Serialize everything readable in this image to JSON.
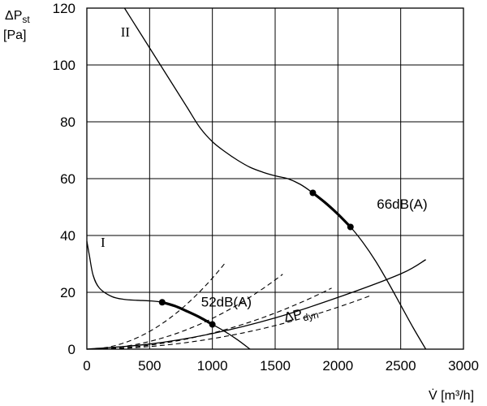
{
  "chart_data": {
    "type": "line",
    "title": "",
    "ylabel_symbol": "ΔP",
    "ylabel_subscript": "st",
    "ylabel_unit": "[Pa]",
    "xlabel": "V̇ [m³/h]",
    "xlim": [
      0,
      3000
    ],
    "ylim": [
      0,
      120
    ],
    "x_ticks": [
      0,
      500,
      1000,
      1500,
      2000,
      2500,
      3000
    ],
    "y_ticks": [
      0,
      20,
      40,
      60,
      80,
      100,
      120
    ],
    "grid": true,
    "curves": [
      {
        "name": "I",
        "style": "solid",
        "points": [
          [
            0,
            38
          ],
          [
            20,
            33
          ],
          [
            50,
            26
          ],
          [
            100,
            21.5
          ],
          [
            200,
            18.5
          ],
          [
            300,
            17.5
          ],
          [
            400,
            17.2
          ],
          [
            500,
            17
          ],
          [
            600,
            16.5
          ],
          [
            700,
            15.2
          ],
          [
            800,
            13.3
          ],
          [
            900,
            11.2
          ],
          [
            1000,
            8.7
          ],
          [
            1100,
            6.2
          ],
          [
            1200,
            3.3
          ],
          [
            1300,
            0
          ]
        ]
      },
      {
        "name": "II",
        "style": "solid",
        "points": [
          [
            300,
            120
          ],
          [
            400,
            113
          ],
          [
            500,
            106
          ],
          [
            600,
            99
          ],
          [
            700,
            92
          ],
          [
            800,
            85
          ],
          [
            900,
            78
          ],
          [
            1000,
            73
          ],
          [
            1100,
            69.5
          ],
          [
            1200,
            66.5
          ],
          [
            1300,
            64
          ],
          [
            1400,
            62.3
          ],
          [
            1500,
            61
          ],
          [
            1600,
            60
          ],
          [
            1700,
            58
          ],
          [
            1800,
            55
          ],
          [
            1900,
            51.5
          ],
          [
            2000,
            47.5
          ],
          [
            2100,
            43
          ],
          [
            2200,
            37.5
          ],
          [
            2300,
            31
          ],
          [
            2400,
            23.5
          ],
          [
            2500,
            15.5
          ],
          [
            2600,
            7.5
          ],
          [
            2700,
            0
          ]
        ]
      },
      {
        "name": "ΔP_dyn",
        "style": "solid",
        "points": [
          [
            0,
            0
          ],
          [
            500,
            1.8
          ],
          [
            1000,
            5.5
          ],
          [
            1500,
            11
          ],
          [
            2000,
            18.2
          ],
          [
            2500,
            26.5
          ],
          [
            2700,
            31.5
          ]
        ]
      }
    ],
    "system_curves": [
      {
        "style": "dashed",
        "k": 2.5e-05,
        "x_end": 1100
      },
      {
        "style": "dashed",
        "k": 1.083e-05,
        "x_end": 1560
      },
      {
        "style": "dashed",
        "k": 5.65e-06,
        "x_end": 1950
      },
      {
        "style": "dashed",
        "k": 3.69e-06,
        "x_end": 2260
      }
    ],
    "highlights": [
      {
        "label": "52dB(A)",
        "curve": "I",
        "x_range": [
          600,
          1000
        ],
        "points": [
          [
            600,
            16.5
          ],
          [
            1000,
            8.7
          ]
        ]
      },
      {
        "label": "66dB(A)",
        "curve": "II",
        "x_range": [
          1800,
          2100
        ],
        "points": [
          [
            1800,
            55
          ],
          [
            2100,
            43
          ]
        ]
      }
    ],
    "annotations": [
      {
        "text": "I",
        "x": 110,
        "y": 36
      },
      {
        "text": "II",
        "x": 270,
        "y": 110
      },
      {
        "text": "52dB(A)",
        "x": 910,
        "y": 15
      },
      {
        "text": "66dB(A)",
        "x": 2310,
        "y": 49.5
      },
      {
        "text": "ΔP",
        "sub": "dyn",
        "x": 1580,
        "y": 9.5
      }
    ]
  }
}
